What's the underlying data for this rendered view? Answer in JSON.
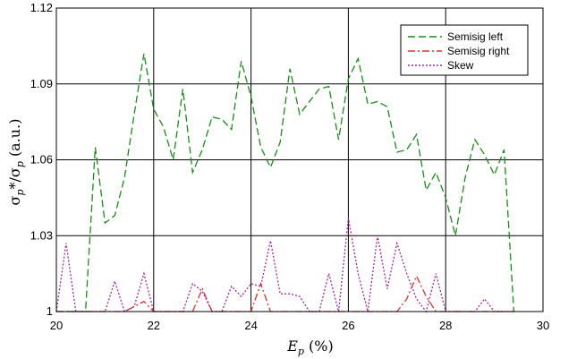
{
  "chart_data": {
    "type": "line",
    "xlabel": "Ep (%)",
    "ylabel": "σp*/σp (a.u.)",
    "xlim": [
      20,
      30
    ],
    "ylim": [
      1.0,
      1.12
    ],
    "xticks": [
      20,
      22,
      24,
      26,
      28,
      30
    ],
    "yticks": [
      1,
      1.03,
      1.06,
      1.09,
      1.12
    ],
    "xtick_labels": [
      "20",
      "22",
      "24",
      "26",
      "28",
      "30"
    ],
    "ytick_labels": [
      "1",
      "1.03",
      "1.06",
      "1.09",
      "1.12"
    ],
    "grid": true,
    "legend_position": "top-right",
    "series": [
      {
        "name": "Semisig left",
        "color": "#1a8a1a",
        "dash": "8,4",
        "x": [
          20.0,
          20.2,
          20.4,
          20.6,
          20.8,
          21.0,
          21.2,
          21.4,
          21.6,
          21.8,
          22.0,
          22.2,
          22.4,
          22.6,
          22.8,
          23.0,
          23.2,
          23.4,
          23.6,
          23.8,
          24.0,
          24.2,
          24.4,
          24.6,
          24.8,
          25.0,
          25.2,
          25.4,
          25.6,
          25.8,
          26.0,
          26.2,
          26.4,
          26.6,
          26.8,
          27.0,
          27.2,
          27.4,
          27.6,
          27.8,
          28.0,
          28.2,
          28.4,
          28.6,
          28.8,
          29.0,
          29.2,
          29.4
        ],
        "y": [
          1.0,
          1.0,
          1.0,
          1.0,
          1.065,
          1.035,
          1.038,
          1.053,
          1.078,
          1.102,
          1.08,
          1.073,
          1.06,
          1.088,
          1.055,
          1.064,
          1.077,
          1.076,
          1.072,
          1.099,
          1.085,
          1.065,
          1.057,
          1.067,
          1.096,
          1.078,
          1.083,
          1.088,
          1.089,
          1.068,
          1.092,
          1.1,
          1.082,
          1.083,
          1.081,
          1.063,
          1.064,
          1.07,
          1.048,
          1.055,
          1.045,
          1.03,
          1.053,
          1.068,
          1.062,
          1.054,
          1.064,
          1.0
        ]
      },
      {
        "name": "Semisig right",
        "color": "#e03030",
        "dash": "8,3,2,3",
        "x": [
          20.0,
          20.2,
          20.4,
          20.6,
          20.8,
          21.0,
          21.2,
          21.4,
          21.6,
          21.8,
          22.0,
          22.2,
          22.4,
          22.6,
          22.8,
          23.0,
          23.2,
          23.4,
          23.6,
          23.8,
          24.0,
          24.2,
          24.4,
          24.6,
          24.8,
          25.0,
          25.2,
          25.4,
          25.6,
          25.8,
          26.0,
          26.2,
          26.4,
          26.6,
          26.8,
          27.0,
          27.2,
          27.4,
          27.6,
          27.8,
          28.0,
          28.2,
          28.4,
          28.6,
          28.8,
          29.0,
          29.2,
          29.4
        ],
        "y": [
          1.0,
          1.0,
          1.0,
          1.0,
          1.0,
          1.0,
          1.0,
          1.0,
          1.002,
          1.004,
          1.0,
          1.0,
          1.0,
          1.0,
          1.0,
          1.009,
          1.0,
          1.0,
          1.0,
          1.0,
          1.0,
          1.011,
          1.0,
          1.0,
          1.0,
          1.0,
          1.0,
          1.0,
          1.0,
          1.0,
          1.0,
          1.0,
          1.0,
          1.0,
          1.0,
          1.0,
          1.005,
          1.014,
          1.006,
          1.0,
          1.0,
          1.0,
          1.0,
          1.0,
          1.0,
          1.0,
          1.0,
          1.0
        ]
      },
      {
        "name": "Skew",
        "color": "#9a2a9a",
        "dash": "2,2",
        "x": [
          20.0,
          20.2,
          20.4,
          20.6,
          20.8,
          21.0,
          21.2,
          21.4,
          21.6,
          21.8,
          22.0,
          22.2,
          22.4,
          22.6,
          22.8,
          23.0,
          23.2,
          23.4,
          23.6,
          23.8,
          24.0,
          24.2,
          24.4,
          24.6,
          24.8,
          25.0,
          25.2,
          25.4,
          25.6,
          25.8,
          26.0,
          26.2,
          26.4,
          26.6,
          26.8,
          27.0,
          27.2,
          27.4,
          27.6,
          27.8,
          28.0,
          28.2,
          28.4,
          28.6,
          28.8,
          29.0,
          29.2,
          29.4
        ],
        "y": [
          1.0,
          1.027,
          1.0,
          1.0,
          1.0,
          1.0,
          1.012,
          1.0,
          1.002,
          1.015,
          1.0,
          1.0,
          1.0,
          1.0,
          1.011,
          1.008,
          1.0,
          1.0,
          1.01,
          1.006,
          1.011,
          1.01,
          1.028,
          1.007,
          1.007,
          1.006,
          1.0,
          1.0,
          1.015,
          1.0,
          1.037,
          1.015,
          1.0,
          1.03,
          1.009,
          1.027,
          1.015,
          1.005,
          1.0,
          1.015,
          1.0,
          1.0,
          1.0,
          1.0,
          1.005,
          1.0,
          1.0,
          1.0
        ]
      }
    ]
  }
}
